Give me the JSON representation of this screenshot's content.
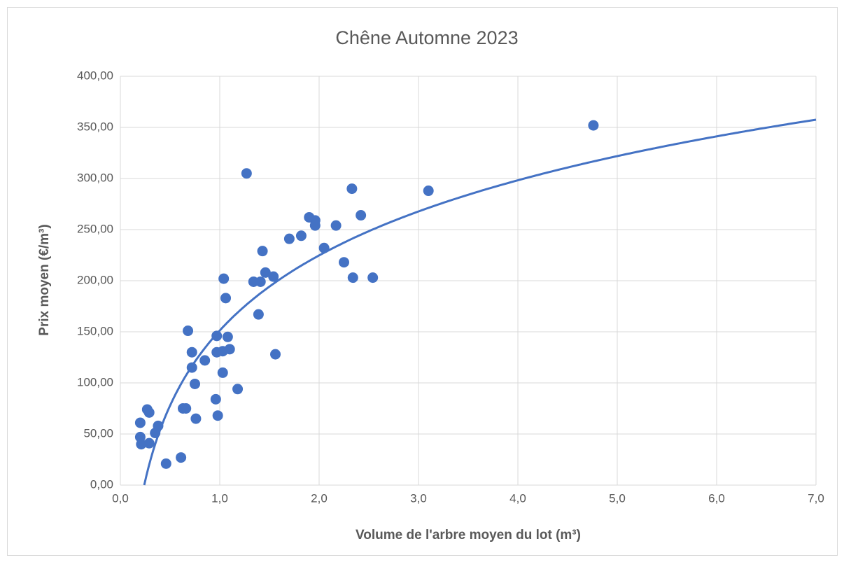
{
  "chart_data": {
    "type": "scatter",
    "title": "Chêne Automne 2023",
    "x_label": "Volume de l'arbre moyen du lot (m³)",
    "y_label": "Prix moyen (€/m³)",
    "grid": true,
    "color": "#4472c4",
    "xlim": [
      0,
      7
    ],
    "ylim": [
      0,
      400
    ],
    "xticks": [
      {
        "value": 0,
        "label": "0,0"
      },
      {
        "value": 1,
        "label": "1,0"
      },
      {
        "value": 2,
        "label": "2,0"
      },
      {
        "value": 3,
        "label": "3,0"
      },
      {
        "value": 4,
        "label": "4,0"
      },
      {
        "value": 5,
        "label": "5,0"
      },
      {
        "value": 6,
        "label": "6,0"
      },
      {
        "value": 7,
        "label": "7,0"
      }
    ],
    "yticks": [
      {
        "value": 0,
        "label": "0,00"
      },
      {
        "value": 50,
        "label": "50,00"
      },
      {
        "value": 100,
        "label": "100,00"
      },
      {
        "value": 150,
        "label": "150,00"
      },
      {
        "value": 200,
        "label": "200,00"
      },
      {
        "value": 250,
        "label": "250,00"
      },
      {
        "value": 300,
        "label": "300,00"
      },
      {
        "value": 350,
        "label": "350,00"
      },
      {
        "value": 400,
        "label": "400,00"
      }
    ],
    "trendline": {
      "type": "logarithmic",
      "a": 106,
      "b": 151.3
    },
    "series": [
      {
        "name": "Prix moyen",
        "color": "#4472c4",
        "x": [
          4.76,
          1.27,
          2.33,
          3.1,
          1.9,
          1.96,
          1.96,
          2.17,
          2.42,
          1.7,
          1.82,
          1.43,
          2.05,
          2.25,
          1.46,
          1.54,
          2.34,
          2.54,
          1.04,
          1.34,
          1.41,
          1.06,
          1.39,
          0.68,
          0.97,
          1.08,
          0.72,
          1.1,
          0.97,
          1.03,
          0.72,
          0.85,
          1.56,
          1.03,
          0.75,
          1.18,
          0.96,
          0.63,
          0.66,
          0.27,
          0.29,
          0.76,
          0.98,
          0.2,
          0.38,
          0.35,
          0.2,
          0.29,
          0.21,
          0.46,
          0.61
        ],
        "values": [
          352,
          305,
          290,
          288,
          262,
          259,
          254,
          254,
          264,
          241,
          244,
          229,
          232,
          218,
          208,
          204,
          203,
          203,
          202,
          199,
          199,
          183,
          167,
          151,
          146,
          145,
          130,
          133,
          130,
          131,
          115,
          122,
          128,
          110,
          99,
          94,
          84,
          75,
          75,
          74,
          71,
          65,
          68,
          61,
          58,
          51,
          47,
          41,
          40,
          21,
          27
        ]
      }
    ]
  }
}
